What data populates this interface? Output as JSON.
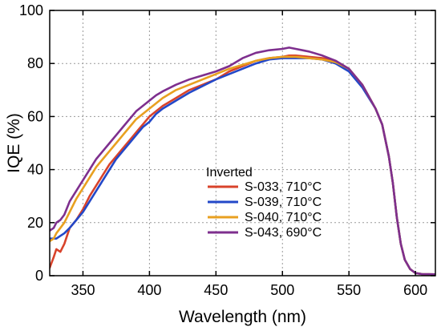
{
  "chart_data": {
    "type": "line",
    "xlabel": "Wavelength (nm)",
    "ylabel": "IQE (%)",
    "xlim": [
      325,
      615
    ],
    "ylim": [
      0,
      100
    ],
    "xticks": [
      350,
      400,
      450,
      500,
      550,
      600
    ],
    "yticks": [
      0,
      20,
      40,
      60,
      80,
      100
    ],
    "grid": true,
    "legend": {
      "title": "Inverted",
      "placement": "lower-right"
    },
    "series": [
      {
        "name": "S-033, 710°C",
        "color": "#d8432b",
        "points": [
          [
            325,
            3
          ],
          [
            328,
            7
          ],
          [
            330,
            10
          ],
          [
            333,
            9
          ],
          [
            336,
            12
          ],
          [
            340,
            18
          ],
          [
            345,
            21
          ],
          [
            350,
            25
          ],
          [
            355,
            30
          ],
          [
            360,
            34
          ],
          [
            365,
            38
          ],
          [
            370,
            42
          ],
          [
            375,
            45
          ],
          [
            380,
            48
          ],
          [
            385,
            51
          ],
          [
            390,
            54
          ],
          [
            395,
            57
          ],
          [
            400,
            60
          ],
          [
            405,
            62
          ],
          [
            410,
            64
          ],
          [
            420,
            67
          ],
          [
            430,
            70
          ],
          [
            440,
            72
          ],
          [
            450,
            74
          ],
          [
            460,
            77
          ],
          [
            470,
            79
          ],
          [
            480,
            81
          ],
          [
            490,
            82
          ],
          [
            500,
            82.5
          ],
          [
            505,
            83
          ],
          [
            510,
            83
          ],
          [
            520,
            82.5
          ],
          [
            530,
            82
          ],
          [
            540,
            81
          ],
          [
            550,
            78
          ],
          [
            560,
            72
          ],
          [
            570,
            63
          ],
          [
            575,
            57
          ],
          [
            580,
            45
          ],
          [
            583,
            35
          ],
          [
            586,
            22
          ],
          [
            589,
            12
          ],
          [
            592,
            6
          ],
          [
            596,
            2.5
          ],
          [
            600,
            1
          ],
          [
            605,
            0.6
          ],
          [
            615,
            0.5
          ]
        ]
      },
      {
        "name": "S-039, 710°C",
        "color": "#2348c8",
        "points": [
          [
            325,
            14
          ],
          [
            328,
            14
          ],
          [
            330,
            14
          ],
          [
            333,
            15
          ],
          [
            336,
            16
          ],
          [
            340,
            18
          ],
          [
            345,
            21
          ],
          [
            350,
            24
          ],
          [
            355,
            28
          ],
          [
            360,
            32
          ],
          [
            365,
            36
          ],
          [
            370,
            40
          ],
          [
            375,
            44
          ],
          [
            380,
            47
          ],
          [
            385,
            50
          ],
          [
            390,
            53
          ],
          [
            395,
            56
          ],
          [
            400,
            58
          ],
          [
            405,
            61
          ],
          [
            410,
            63
          ],
          [
            420,
            66
          ],
          [
            430,
            69
          ],
          [
            440,
            71.5
          ],
          [
            450,
            74
          ],
          [
            460,
            76
          ],
          [
            470,
            78
          ],
          [
            480,
            80
          ],
          [
            490,
            81.5
          ],
          [
            500,
            82
          ],
          [
            510,
            82
          ],
          [
            520,
            82
          ],
          [
            530,
            81.5
          ],
          [
            540,
            80
          ],
          [
            550,
            77
          ],
          [
            560,
            71
          ],
          [
            570,
            63
          ],
          [
            575,
            57
          ],
          [
            580,
            45
          ],
          [
            583,
            35
          ],
          [
            586,
            22
          ],
          [
            589,
            12
          ],
          [
            592,
            6
          ],
          [
            596,
            2.5
          ],
          [
            600,
            1
          ],
          [
            605,
            0.6
          ],
          [
            615,
            0.5
          ]
        ]
      },
      {
        "name": "S-040, 710°C",
        "color": "#e8a020",
        "points": [
          [
            325,
            13
          ],
          [
            328,
            14
          ],
          [
            330,
            16
          ],
          [
            333,
            18
          ],
          [
            336,
            20
          ],
          [
            340,
            24
          ],
          [
            345,
            29
          ],
          [
            350,
            33
          ],
          [
            355,
            37
          ],
          [
            360,
            41
          ],
          [
            365,
            44
          ],
          [
            370,
            47
          ],
          [
            375,
            50
          ],
          [
            380,
            53
          ],
          [
            385,
            56
          ],
          [
            390,
            59
          ],
          [
            395,
            61
          ],
          [
            400,
            63
          ],
          [
            405,
            65
          ],
          [
            410,
            67
          ],
          [
            420,
            70
          ],
          [
            430,
            72
          ],
          [
            440,
            74
          ],
          [
            450,
            76
          ],
          [
            460,
            78
          ],
          [
            470,
            79.5
          ],
          [
            480,
            81
          ],
          [
            490,
            82
          ],
          [
            500,
            82.5
          ],
          [
            510,
            82.5
          ],
          [
            520,
            82
          ],
          [
            530,
            81.5
          ],
          [
            540,
            80.5
          ],
          [
            550,
            78
          ],
          [
            560,
            72
          ],
          [
            570,
            63
          ],
          [
            575,
            57
          ],
          [
            580,
            45
          ],
          [
            583,
            35
          ],
          [
            586,
            22
          ],
          [
            589,
            12
          ],
          [
            592,
            6
          ],
          [
            596,
            2.5
          ],
          [
            600,
            1
          ],
          [
            605,
            0.6
          ],
          [
            615,
            0.5
          ]
        ]
      },
      {
        "name": "S-043, 690°C",
        "color": "#7e2f8e",
        "points": [
          [
            325,
            17
          ],
          [
            328,
            18
          ],
          [
            330,
            20
          ],
          [
            333,
            21
          ],
          [
            336,
            23
          ],
          [
            340,
            28
          ],
          [
            345,
            32
          ],
          [
            350,
            36
          ],
          [
            355,
            40
          ],
          [
            360,
            44
          ],
          [
            365,
            47
          ],
          [
            370,
            50
          ],
          [
            375,
            53
          ],
          [
            380,
            56
          ],
          [
            385,
            59
          ],
          [
            390,
            62
          ],
          [
            395,
            64
          ],
          [
            400,
            66
          ],
          [
            405,
            68
          ],
          [
            410,
            69.5
          ],
          [
            420,
            72
          ],
          [
            430,
            74
          ],
          [
            440,
            75.5
          ],
          [
            450,
            77
          ],
          [
            460,
            79
          ],
          [
            470,
            82
          ],
          [
            480,
            84
          ],
          [
            490,
            85
          ],
          [
            500,
            85.5
          ],
          [
            505,
            86
          ],
          [
            510,
            85.5
          ],
          [
            520,
            84.5
          ],
          [
            530,
            83
          ],
          [
            540,
            81
          ],
          [
            550,
            78
          ],
          [
            560,
            72
          ],
          [
            570,
            63
          ],
          [
            575,
            57
          ],
          [
            580,
            45
          ],
          [
            583,
            35
          ],
          [
            586,
            22
          ],
          [
            589,
            12
          ],
          [
            592,
            6
          ],
          [
            596,
            2.5
          ],
          [
            600,
            1
          ],
          [
            605,
            0.6
          ],
          [
            615,
            0.5
          ]
        ]
      }
    ]
  }
}
